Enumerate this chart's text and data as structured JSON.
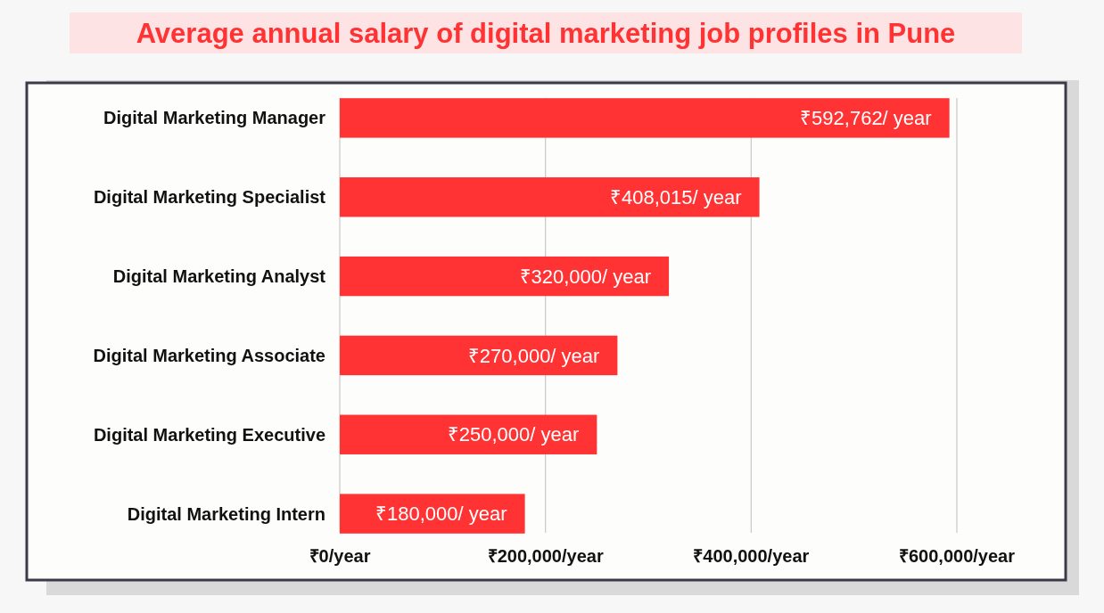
{
  "chart_data": {
    "type": "bar",
    "orientation": "horizontal",
    "title": "Average annual salary of digital marketing job profiles in Pune",
    "categories": [
      "Digital Marketing Manager",
      "Digital Marketing Specialist",
      "Digital Marketing Analyst",
      "Digital Marketing Associate",
      "Digital Marketing Executive",
      "Digital Marketing Intern"
    ],
    "values": [
      592762,
      408015,
      320000,
      270000,
      250000,
      180000
    ],
    "value_labels": [
      "₹592,762/ year",
      "₹408,015/ year",
      "₹320,000/ year",
      "₹270,000/ year",
      "₹250,000/ year",
      "₹180,000/ year"
    ],
    "color": "#ff3333",
    "xlim": [
      0,
      600000
    ],
    "xticks": [
      {
        "value": 0,
        "label": "₹0/year"
      },
      {
        "value": 200000,
        "label": "₹200,000/year"
      },
      {
        "value": 400000,
        "label": "₹400,000/year"
      },
      {
        "value": 600000,
        "label": "₹600,000/year"
      }
    ],
    "grid": "x"
  }
}
